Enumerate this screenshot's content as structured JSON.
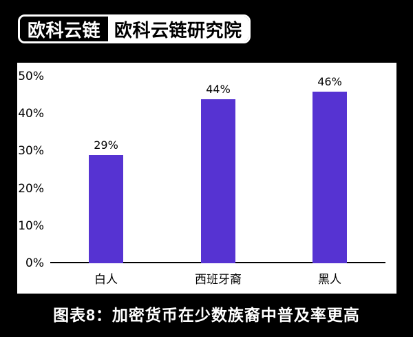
{
  "logo": {
    "brand": "欧科云链",
    "institute": "欧科云链研究院"
  },
  "caption": "图表8：加密货币在少数族裔中普及率更高",
  "colors": {
    "background": "#000000",
    "panel": "#ffffff",
    "bar": "#5633d2",
    "axis": "#000000",
    "chart_text": "#000000",
    "caption_text": "#ffffff"
  },
  "chart_data": {
    "type": "bar",
    "title": "",
    "xlabel": "",
    "ylabel": "",
    "categories": [
      "白人",
      "西班牙裔",
      "黑人"
    ],
    "values": [
      29,
      44,
      46
    ],
    "value_labels": [
      "29%",
      "44%",
      "46%"
    ],
    "yticks": {
      "values": [
        0,
        10,
        20,
        30,
        40,
        50
      ],
      "labels": [
        "0%",
        "10%",
        "20%",
        "30%",
        "40%",
        "50%"
      ]
    },
    "ylim": [
      0,
      50
    ],
    "grid": false,
    "legend": "none",
    "bar_color": "#5633d2"
  }
}
